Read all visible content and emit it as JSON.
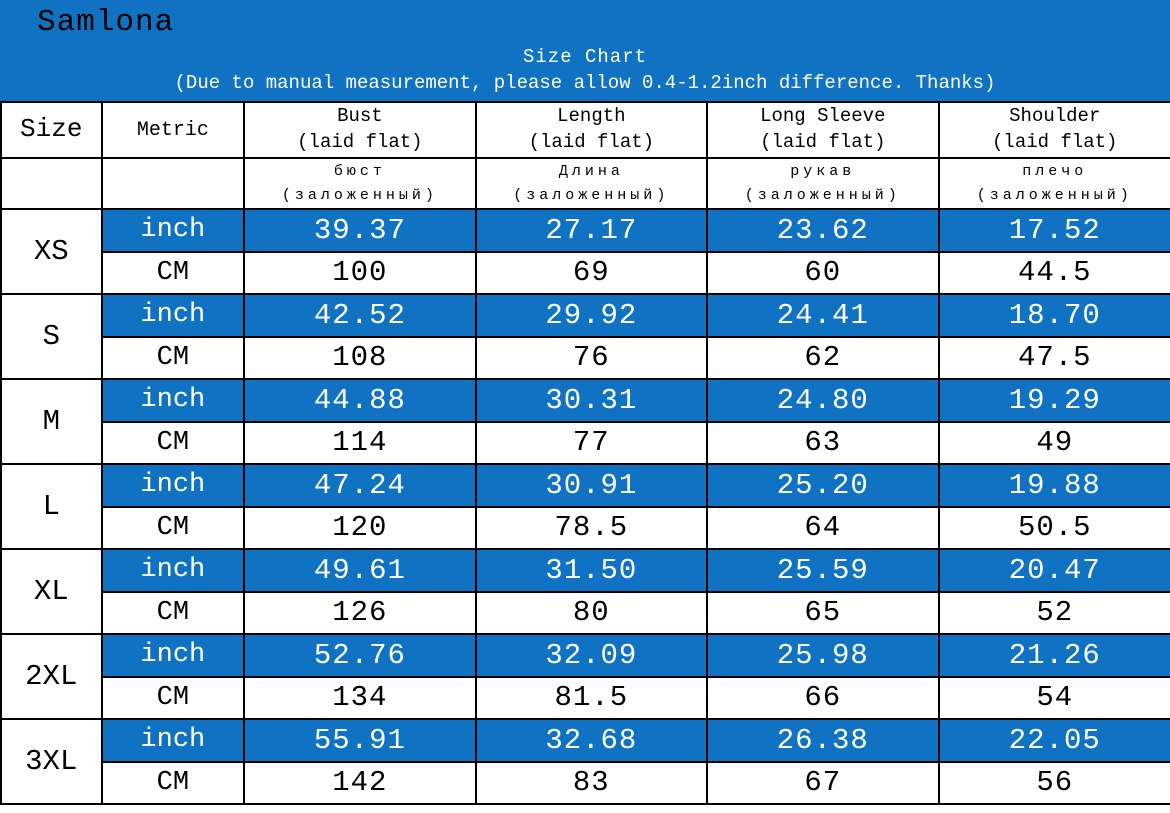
{
  "banner": {
    "brand": "Samlona",
    "title": "Size Chart",
    "note": "(Due to manual measurement, please allow 0.4-1.2inch difference. Thanks)"
  },
  "colors": {
    "banner_blue": "#0F72C2",
    "highlight_row_blue": "#0F72C2",
    "border_black": "#000000",
    "text_on_blue": "#FFFFFF",
    "text_black": "#000000"
  },
  "table": {
    "header": {
      "size": "Size",
      "metric": "Metric",
      "columns": [
        {
          "en_line1": "Bust",
          "en_line2": "(laid flat)",
          "ru_line1": "бюст",
          "ru_line2": "(заложенный)"
        },
        {
          "en_line1": "Length",
          "en_line2": "(laid flat)",
          "ru_line1": "Длина",
          "ru_line2": "(заложенный)"
        },
        {
          "en_line1": "Long Sleeve",
          "en_line2": "(laid flat)",
          "ru_line1": "рукав",
          "ru_line2": "(заложенный)"
        },
        {
          "en_line1": "Shoulder",
          "en_line2": "(laid flat)",
          "ru_line1": "плечо",
          "ru_line2": "(заложенный)"
        }
      ]
    },
    "units": {
      "inch": "inch",
      "cm": "CM"
    },
    "sizes": [
      {
        "label": "XS",
        "inch": [
          "39.37",
          "27.17",
          "23.62",
          "17.52"
        ],
        "cm": [
          "100",
          "69",
          "60",
          "44.5"
        ]
      },
      {
        "label": "S",
        "inch": [
          "42.52",
          "29.92",
          "24.41",
          "18.70"
        ],
        "cm": [
          "108",
          "76",
          "62",
          "47.5"
        ]
      },
      {
        "label": "M",
        "inch": [
          "44.88",
          "30.31",
          "24.80",
          "19.29"
        ],
        "cm": [
          "114",
          "77",
          "63",
          "49"
        ]
      },
      {
        "label": "L",
        "inch": [
          "47.24",
          "30.91",
          "25.20",
          "19.88"
        ],
        "cm": [
          "120",
          "78.5",
          "64",
          "50.5"
        ]
      },
      {
        "label": "XL",
        "inch": [
          "49.61",
          "31.50",
          "25.59",
          "20.47"
        ],
        "cm": [
          "126",
          "80",
          "65",
          "52"
        ]
      },
      {
        "label": "2XL",
        "inch": [
          "52.76",
          "32.09",
          "25.98",
          "21.26"
        ],
        "cm": [
          "134",
          "81.5",
          "66",
          "54"
        ]
      },
      {
        "label": "3XL",
        "inch": [
          "55.91",
          "32.68",
          "26.38",
          "22.05"
        ],
        "cm": [
          "142",
          "83",
          "67",
          "56"
        ]
      }
    ]
  },
  "chart_data": {
    "type": "table",
    "title": "Size Chart",
    "subtitle": "(Due to manual measurement, please allow 0.4-1.2inch difference. Thanks)",
    "columns": [
      "Size",
      "Metric",
      "Bust (laid flat)",
      "Length (laid flat)",
      "Long Sleeve (laid flat)",
      "Shoulder (laid flat)"
    ],
    "columns_russian": [
      "",
      "",
      "бюст (заложенный)",
      "Длина (заложенный)",
      "рукав (заложенный)",
      "плечо (заложенный)"
    ],
    "rows": [
      [
        "XS",
        "inch",
        "39.37",
        "27.17",
        "23.62",
        "17.52"
      ],
      [
        "XS",
        "CM",
        "100",
        "69",
        "60",
        "44.5"
      ],
      [
        "S",
        "inch",
        "42.52",
        "29.92",
        "24.41",
        "18.70"
      ],
      [
        "S",
        "CM",
        "108",
        "76",
        "62",
        "47.5"
      ],
      [
        "M",
        "inch",
        "44.88",
        "30.31",
        "24.80",
        "19.29"
      ],
      [
        "M",
        "CM",
        "114",
        "77",
        "63",
        "49"
      ],
      [
        "L",
        "inch",
        "47.24",
        "30.91",
        "25.20",
        "19.88"
      ],
      [
        "L",
        "CM",
        "120",
        "78.5",
        "64",
        "50.5"
      ],
      [
        "XL",
        "inch",
        "49.61",
        "31.50",
        "25.59",
        "20.47"
      ],
      [
        "XL",
        "CM",
        "126",
        "80",
        "65",
        "52"
      ],
      [
        "2XL",
        "inch",
        "52.76",
        "32.09",
        "25.98",
        "21.26"
      ],
      [
        "2XL",
        "CM",
        "134",
        "81.5",
        "66",
        "54"
      ],
      [
        "3XL",
        "inch",
        "55.91",
        "32.68",
        "26.38",
        "22.05"
      ],
      [
        "3XL",
        "CM",
        "142",
        "83",
        "67",
        "56"
      ]
    ]
  }
}
